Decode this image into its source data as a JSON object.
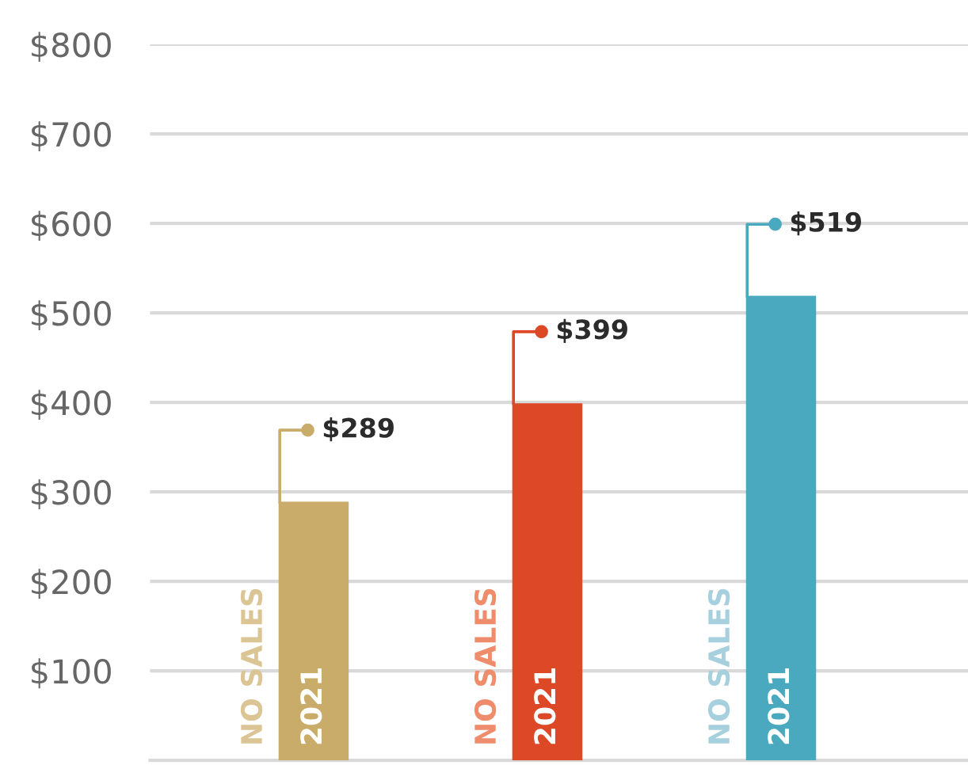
{
  "chart_data": {
    "type": "bar",
    "categories": [
      null,
      null,
      null
    ],
    "series": [
      {
        "name": "NO SALES",
        "colors": [
          "#dcc595",
          "#ef8c6c",
          "#a6d0de"
        ],
        "values": [
          null,
          null,
          null
        ]
      },
      {
        "name": "2021",
        "colors": [
          "#c9ac6a",
          "#dd4826",
          "#4aa9bf"
        ],
        "values": [
          289,
          399,
          519
        ],
        "value_labels": [
          "$289",
          "$399",
          "$519"
        ]
      }
    ],
    "ylim": [
      0,
      800
    ],
    "yticks": [
      {
        "value": 100,
        "label": "$100"
      },
      {
        "value": 200,
        "label": "$200"
      },
      {
        "value": 300,
        "label": "$300"
      },
      {
        "value": 400,
        "label": "$400"
      },
      {
        "value": 500,
        "label": "$500"
      },
      {
        "value": 600,
        "label": "$600"
      },
      {
        "value": 700,
        "label": "$700"
      },
      {
        "value": 800,
        "label": "$800"
      }
    ],
    "grid": "y",
    "legend": false
  }
}
